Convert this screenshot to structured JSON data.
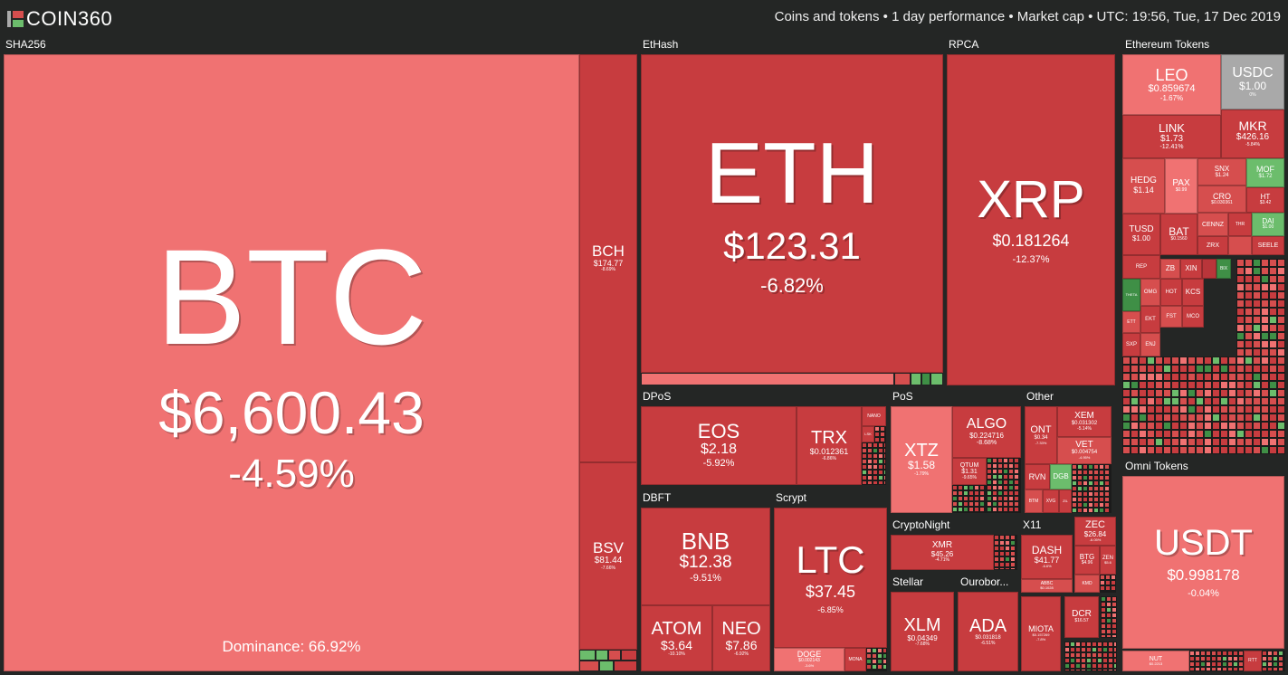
{
  "app": {
    "logo": "COIN360",
    "info": "Coins and tokens  •  1 day performance  •  Market cap  •  UTC: 19:56, Tue, 17 Dec 2019"
  },
  "sections": {
    "sha256": "SHA256",
    "ethash": "EtHash",
    "rpca": "RPCA",
    "eth_tokens": "Ethereum Tokens",
    "dpos": "DPoS",
    "pos": "PoS",
    "other": "Other",
    "dbft": "DBFT",
    "scrypt": "Scrypt",
    "cryptonight": "CryptoNight",
    "x11": "X11",
    "stellar": "Stellar",
    "ouroboros": "Ourobor...",
    "omni": "Omni Tokens"
  },
  "coins": {
    "btc": {
      "sym": "BTC",
      "price": "$6,600.43",
      "chg": "-4.59%",
      "dominance": "Dominance: 66.92%"
    },
    "bch": {
      "sym": "BCH",
      "price": "$174.77",
      "chg": "-8.69%"
    },
    "bsv": {
      "sym": "BSV",
      "price": "$81.44",
      "chg": "-7.66%"
    },
    "eth": {
      "sym": "ETH",
      "price": "$123.31",
      "chg": "-6.82%"
    },
    "xrp": {
      "sym": "XRP",
      "price": "$0.181264",
      "chg": "-12.37%"
    },
    "leo": {
      "sym": "LEO",
      "price": "$0.859674",
      "chg": "-1.67%"
    },
    "usdc": {
      "sym": "USDC",
      "price": "$1.00",
      "chg": "0%"
    },
    "link": {
      "sym": "LINK",
      "price": "$1.73",
      "chg": "-12.41%"
    },
    "mkr": {
      "sym": "MKR",
      "price": "$426.16",
      "chg": "-5.84%"
    },
    "hedg": {
      "sym": "HEDG",
      "price": "$1.14"
    },
    "pax": {
      "sym": "PAX",
      "price": "$0.99"
    },
    "snx": {
      "sym": "SNX",
      "price": "$1.24"
    },
    "mof": {
      "sym": "MOF",
      "price": "$1.72"
    },
    "cro": {
      "sym": "CRO",
      "price": "$0.030361"
    },
    "ht": {
      "sym": "HT",
      "price": "$3.42"
    },
    "tusd": {
      "sym": "TUSD",
      "price": "$1.00"
    },
    "bat": {
      "sym": "BAT",
      "price": "$0.1560"
    },
    "cennz": {
      "sym": "CENNZ"
    },
    "dai": {
      "sym": "DAI",
      "price": "$1.00"
    },
    "zrx": {
      "sym": "ZRX"
    },
    "thr": {
      "sym": "THR"
    },
    "seele": {
      "sym": "SEELE"
    },
    "rep": {
      "sym": "REP"
    },
    "zb": {
      "sym": "ZB"
    },
    "xin": {
      "sym": "XIN"
    },
    "bix": {
      "sym": "BIX"
    },
    "theta": {
      "sym": "THETA"
    },
    "omg": {
      "sym": "OMG"
    },
    "hot": {
      "sym": "HOT"
    },
    "kcs": {
      "sym": "KCS"
    },
    "ett": {
      "sym": "ETT"
    },
    "ekt": {
      "sym": "EKT"
    },
    "fst": {
      "sym": "FST"
    },
    "mco": {
      "sym": "MCO"
    },
    "sxp": {
      "sym": "SXP"
    },
    "enj": {
      "sym": "ENJ"
    },
    "eos": {
      "sym": "EOS",
      "price": "$2.18",
      "chg": "-5.92%"
    },
    "trx": {
      "sym": "TRX",
      "price": "$0.012361",
      "chg": "-6.86%"
    },
    "nano": {
      "sym": "NANO"
    },
    "lsk": {
      "sym": "LSK"
    },
    "xtz": {
      "sym": "XTZ",
      "price": "$1.58",
      "chg": "-1.79%"
    },
    "algo": {
      "sym": "ALGO",
      "price": "$0.224716",
      "chg": "-8.68%"
    },
    "qtum": {
      "sym": "QTUM",
      "price": "$1.31",
      "chg": "-9.65%"
    },
    "ont": {
      "sym": "ONT",
      "price": "$0.34",
      "chg": "-7.33%"
    },
    "xem": {
      "sym": "XEM",
      "price": "$0.031302",
      "chg": "-5.14%"
    },
    "vet": {
      "sym": "VET",
      "price": "$0.004754",
      "chg": "-4.95%"
    },
    "rvn": {
      "sym": "RVN"
    },
    "dgb": {
      "sym": "DGB"
    },
    "btm": {
      "sym": "BTM"
    },
    "xvg": {
      "sym": "XVG"
    },
    "zil": {
      "sym": "ZIL"
    },
    "bnb": {
      "sym": "BNB",
      "price": "$12.38",
      "chg": "-9.51%"
    },
    "atom": {
      "sym": "ATOM",
      "price": "$3.64",
      "chg": "-10.10%"
    },
    "neo": {
      "sym": "NEO",
      "price": "$7.86",
      "chg": "-6.92%"
    },
    "ltc": {
      "sym": "LTC",
      "price": "$37.45",
      "chg": "-6.85%"
    },
    "doge": {
      "sym": "DOGE",
      "price": "$0.002143",
      "chg": "-3.6%"
    },
    "mona": {
      "sym": "MONA"
    },
    "xmr": {
      "sym": "XMR",
      "price": "$45.26",
      "chg": "-4.71%"
    },
    "dash": {
      "sym": "DASH",
      "price": "$41.77",
      "chg": "-6.6%"
    },
    "abbc": {
      "sym": "ABBC",
      "price": "$0.1028"
    },
    "zec": {
      "sym": "ZEC",
      "price": "$26.84",
      "chg": "-6.05%"
    },
    "btg": {
      "sym": "BTG",
      "price": "$4.96"
    },
    "zen": {
      "sym": "ZEN",
      "price": "$5.6"
    },
    "kmd": {
      "sym": "KMD"
    },
    "xlm": {
      "sym": "XLM",
      "price": "$0.04349",
      "chg": "-7.68%"
    },
    "ada": {
      "sym": "ADA",
      "price": "$0.031818",
      "chg": "-6.51%"
    },
    "miota": {
      "sym": "MIOTA",
      "price": "$0.157269",
      "chg": "-7.8%"
    },
    "dcr": {
      "sym": "DCR",
      "price": "$16.57"
    },
    "usdt": {
      "sym": "USDT",
      "price": "$0.998178",
      "chg": "-0.04%"
    },
    "nut": {
      "sym": "NUT",
      "price": "$0.2213"
    },
    "rtt": {
      "sym": "RTT"
    }
  },
  "colors": {
    "red_light": "#f07272",
    "red_mid": "#d64e4e",
    "red_dark": "#c73c3f",
    "green": "#6cbd6c",
    "green_dark": "#3f8f46",
    "neutral": "#a9a9a9",
    "background": "#242625"
  }
}
